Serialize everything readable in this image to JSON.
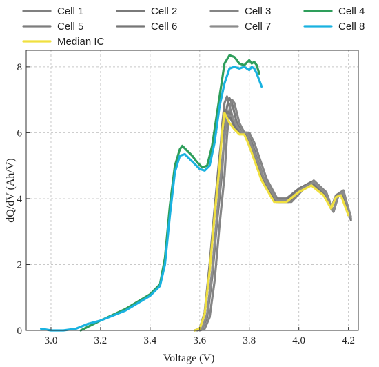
{
  "chart_data": {
    "type": "line",
    "title": "",
    "xlabel": "Voltage (V)",
    "ylabel": "dQ/dV (Ah/V)",
    "xlim": [
      2.9,
      4.24
    ],
    "ylim": [
      0,
      8.5
    ],
    "xticks": [
      3.0,
      3.2,
      3.4,
      3.6,
      3.8,
      4.0,
      4.2
    ],
    "xtick_labels": [
      "3.0",
      "3.2",
      "3.4",
      "3.6",
      "3.8",
      "4.0",
      "4.2"
    ],
    "yticks": [
      0,
      2,
      4,
      6,
      8
    ],
    "ytick_labels": [
      "0",
      "2",
      "4",
      "6",
      "8"
    ],
    "grid": true,
    "legend_position": "top",
    "series": [
      {
        "name": "Cell 1",
        "color": "#808080",
        "x": [
          3.58,
          3.6,
          3.62,
          3.64,
          3.66,
          3.68,
          3.69,
          3.7,
          3.71,
          3.72,
          3.74,
          3.76,
          3.78,
          3.8,
          3.85,
          3.9,
          3.95,
          4.0,
          4.05,
          4.1,
          4.13,
          4.15,
          4.17,
          4.2
        ],
        "y": [
          0,
          0.05,
          0.5,
          1.8,
          3.5,
          5.0,
          6.2,
          6.9,
          7.1,
          6.8,
          6.3,
          6.0,
          6.0,
          5.7,
          4.7,
          4.0,
          4.0,
          4.3,
          4.5,
          4.2,
          3.7,
          4.1,
          4.2,
          3.5
        ]
      },
      {
        "name": "Cell 2",
        "color": "#7a7a7a",
        "x": [
          3.59,
          3.61,
          3.63,
          3.65,
          3.67,
          3.69,
          3.7,
          3.71,
          3.72,
          3.73,
          3.75,
          3.77,
          3.79,
          3.81,
          3.86,
          3.91,
          3.96,
          4.01,
          4.06,
          4.11,
          4.14,
          4.16,
          4.18,
          4.21
        ],
        "y": [
          0,
          0.05,
          0.4,
          1.6,
          3.3,
          4.8,
          6.0,
          6.8,
          7.05,
          6.9,
          6.3,
          6.0,
          6.0,
          5.7,
          4.6,
          3.9,
          3.9,
          4.3,
          4.5,
          4.2,
          3.6,
          4.1,
          4.2,
          3.35
        ]
      },
      {
        "name": "Cell 3",
        "color": "#858585",
        "x": [
          3.6,
          3.62,
          3.64,
          3.66,
          3.68,
          3.7,
          3.71,
          3.72,
          3.73,
          3.74,
          3.76,
          3.78,
          3.8,
          3.82,
          3.87,
          3.92,
          3.97,
          4.02,
          4.06,
          4.11,
          4.14,
          4.16,
          4.18,
          4.21
        ],
        "y": [
          0,
          0.05,
          0.4,
          1.5,
          3.2,
          4.7,
          5.9,
          6.7,
          7.0,
          6.9,
          6.3,
          6.0,
          6.0,
          5.7,
          4.6,
          3.9,
          3.9,
          4.3,
          4.55,
          4.2,
          3.6,
          4.15,
          4.25,
          3.4
        ]
      },
      {
        "name": "Cell 4",
        "color": "#2e9e5b",
        "x": [
          3.12,
          3.2,
          3.3,
          3.4,
          3.44,
          3.46,
          3.48,
          3.5,
          3.52,
          3.53,
          3.55,
          3.57,
          3.59,
          3.61,
          3.63,
          3.65,
          3.67,
          3.69,
          3.7,
          3.72,
          3.74,
          3.76,
          3.78,
          3.8,
          3.81,
          3.82,
          3.83,
          3.84
        ],
        "y": [
          0,
          0.3,
          0.65,
          1.1,
          1.4,
          2.2,
          3.8,
          5.0,
          5.5,
          5.6,
          5.45,
          5.3,
          5.1,
          4.95,
          5.0,
          5.6,
          6.6,
          7.6,
          8.1,
          8.35,
          8.3,
          8.1,
          8.05,
          8.2,
          8.1,
          8.15,
          8.05,
          7.8
        ]
      },
      {
        "name": "Cell 5",
        "color": "#7d7d7d",
        "x": [
          3.58,
          3.6,
          3.62,
          3.64,
          3.66,
          3.68,
          3.7,
          3.72,
          3.74,
          3.76,
          3.78,
          3.8,
          3.85,
          3.9,
          3.95,
          4.0,
          4.05,
          4.1,
          4.13,
          4.15,
          4.17,
          4.2
        ],
        "y": [
          0,
          0.05,
          0.5,
          1.9,
          3.6,
          5.2,
          6.7,
          6.6,
          6.3,
          6.0,
          6.0,
          5.7,
          4.65,
          4.0,
          4.0,
          4.3,
          4.5,
          4.2,
          3.7,
          4.1,
          4.15,
          3.5
        ]
      },
      {
        "name": "Cell 6",
        "color": "#767676",
        "x": [
          3.58,
          3.6,
          3.62,
          3.64,
          3.66,
          3.68,
          3.7,
          3.72,
          3.74,
          3.76,
          3.78,
          3.8,
          3.85,
          3.9,
          3.95,
          4.0,
          4.05,
          4.1,
          4.13,
          4.15,
          4.17,
          4.2
        ],
        "y": [
          0,
          0.05,
          0.55,
          2.0,
          3.7,
          5.3,
          6.65,
          6.5,
          6.2,
          6.0,
          6.0,
          5.6,
          4.6,
          3.95,
          3.95,
          4.3,
          4.5,
          4.15,
          3.7,
          4.05,
          4.15,
          3.5
        ]
      },
      {
        "name": "Cell 7",
        "color": "#8c8c8c",
        "x": [
          3.59,
          3.61,
          3.63,
          3.65,
          3.67,
          3.69,
          3.71,
          3.73,
          3.75,
          3.77,
          3.79,
          3.81,
          3.86,
          3.91,
          3.96,
          4.01,
          4.06,
          4.11,
          4.14,
          4.16,
          4.18,
          4.21
        ],
        "y": [
          0,
          0.05,
          0.5,
          1.8,
          3.5,
          5.1,
          6.55,
          6.5,
          6.2,
          6.0,
          6.0,
          5.6,
          4.6,
          3.95,
          3.95,
          4.3,
          4.5,
          4.15,
          3.65,
          4.1,
          4.2,
          3.45
        ]
      },
      {
        "name": "Cell 8",
        "color": "#1ab2e0",
        "x": [
          2.96,
          3.0,
          3.05,
          3.1,
          3.15,
          3.2,
          3.3,
          3.4,
          3.44,
          3.46,
          3.48,
          3.5,
          3.52,
          3.54,
          3.56,
          3.58,
          3.6,
          3.62,
          3.64,
          3.66,
          3.68,
          3.7,
          3.72,
          3.74,
          3.76,
          3.78,
          3.8,
          3.81,
          3.82,
          3.83,
          3.85
        ],
        "y": [
          0.05,
          0.0,
          0.0,
          0.05,
          0.2,
          0.3,
          0.6,
          1.05,
          1.35,
          2.0,
          3.5,
          4.8,
          5.3,
          5.35,
          5.2,
          5.05,
          4.9,
          4.85,
          5.0,
          5.7,
          6.8,
          7.5,
          7.95,
          8.0,
          7.95,
          8.0,
          7.9,
          8.0,
          7.95,
          7.8,
          7.4
        ]
      },
      {
        "name": "Median IC",
        "color": "#f0e040",
        "x": [
          3.58,
          3.6,
          3.62,
          3.64,
          3.66,
          3.68,
          3.69,
          3.7,
          3.72,
          3.74,
          3.76,
          3.78,
          3.8,
          3.85,
          3.9,
          3.95,
          4.0,
          4.05,
          4.1,
          4.13,
          4.15,
          4.17,
          4.2
        ],
        "y": [
          0,
          0.05,
          0.5,
          1.8,
          3.5,
          5.0,
          6.0,
          6.6,
          6.3,
          6.1,
          5.95,
          5.95,
          5.6,
          4.55,
          3.9,
          3.9,
          4.2,
          4.4,
          4.1,
          3.7,
          4.05,
          4.1,
          3.5
        ]
      }
    ]
  }
}
